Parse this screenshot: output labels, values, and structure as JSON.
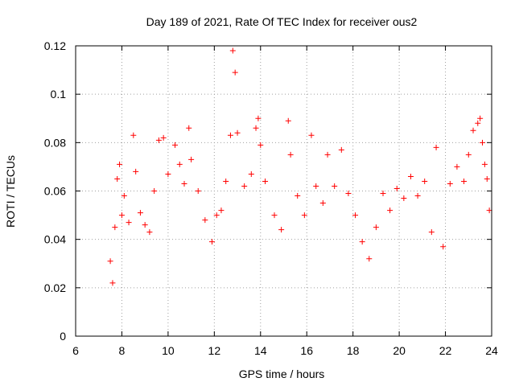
{
  "chart_data": {
    "type": "scatter",
    "title": "Day 189 of 2021, Rate Of TEC Index for receiver ous2",
    "xlabel": "GPS time / hours",
    "ylabel": "ROTI / TECUs",
    "xlim": [
      6,
      24
    ],
    "ylim": [
      0,
      0.12
    ],
    "xticks": [
      6,
      8,
      10,
      12,
      14,
      16,
      18,
      20,
      22,
      24
    ],
    "yticks": [
      0,
      0.02,
      0.04,
      0.06,
      0.08,
      0.1,
      0.12
    ],
    "ytick_labels": [
      "0",
      "0.02",
      "0.04",
      "0.06",
      "0.08",
      "0.1",
      "0.12"
    ],
    "grid": true,
    "marker": "+",
    "color": "#ff0000",
    "series": [
      {
        "points": [
          [
            7.5,
            0.031
          ],
          [
            7.6,
            0.022
          ],
          [
            7.7,
            0.045
          ],
          [
            7.8,
            0.065
          ],
          [
            7.9,
            0.071
          ],
          [
            8.0,
            0.05
          ],
          [
            8.1,
            0.058
          ],
          [
            8.3,
            0.047
          ],
          [
            8.5,
            0.083
          ],
          [
            8.6,
            0.068
          ],
          [
            8.8,
            0.051
          ],
          [
            9.0,
            0.046
          ],
          [
            9.2,
            0.043
          ],
          [
            9.4,
            0.06
          ],
          [
            9.6,
            0.081
          ],
          [
            9.8,
            0.082
          ],
          [
            10.0,
            0.067
          ],
          [
            10.3,
            0.079
          ],
          [
            10.5,
            0.071
          ],
          [
            10.7,
            0.063
          ],
          [
            10.9,
            0.086
          ],
          [
            11.0,
            0.073
          ],
          [
            11.3,
            0.06
          ],
          [
            11.6,
            0.048
          ],
          [
            11.9,
            0.039
          ],
          [
            12.1,
            0.05
          ],
          [
            12.3,
            0.052
          ],
          [
            12.5,
            0.064
          ],
          [
            12.7,
            0.083
          ],
          [
            12.8,
            0.118
          ],
          [
            12.9,
            0.109
          ],
          [
            13.0,
            0.084
          ],
          [
            13.3,
            0.062
          ],
          [
            13.6,
            0.067
          ],
          [
            13.8,
            0.086
          ],
          [
            13.9,
            0.09
          ],
          [
            14.0,
            0.079
          ],
          [
            14.2,
            0.064
          ],
          [
            14.6,
            0.05
          ],
          [
            14.9,
            0.044
          ],
          [
            15.2,
            0.089
          ],
          [
            15.3,
            0.075
          ],
          [
            15.6,
            0.058
          ],
          [
            15.9,
            0.05
          ],
          [
            16.2,
            0.083
          ],
          [
            16.4,
            0.062
          ],
          [
            16.7,
            0.055
          ],
          [
            16.9,
            0.075
          ],
          [
            17.2,
            0.062
          ],
          [
            17.5,
            0.077
          ],
          [
            17.8,
            0.059
          ],
          [
            18.1,
            0.05
          ],
          [
            18.4,
            0.039
          ],
          [
            18.7,
            0.032
          ],
          [
            19.0,
            0.045
          ],
          [
            19.3,
            0.059
          ],
          [
            19.6,
            0.052
          ],
          [
            19.9,
            0.061
          ],
          [
            20.2,
            0.057
          ],
          [
            20.5,
            0.066
          ],
          [
            20.8,
            0.058
          ],
          [
            21.1,
            0.064
          ],
          [
            21.4,
            0.043
          ],
          [
            21.6,
            0.078
          ],
          [
            21.9,
            0.037
          ],
          [
            22.2,
            0.063
          ],
          [
            22.5,
            0.07
          ],
          [
            22.8,
            0.064
          ],
          [
            23.0,
            0.075
          ],
          [
            23.2,
            0.085
          ],
          [
            23.4,
            0.088
          ],
          [
            23.5,
            0.09
          ],
          [
            23.6,
            0.08
          ],
          [
            23.7,
            0.071
          ],
          [
            23.8,
            0.065
          ],
          [
            23.9,
            0.052
          ]
        ]
      }
    ]
  }
}
